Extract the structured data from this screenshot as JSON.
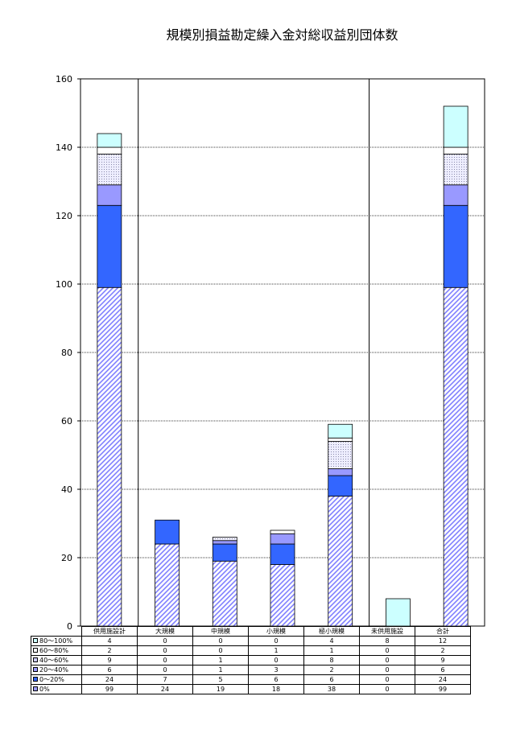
{
  "chart_data": {
    "type": "bar",
    "stacked": true,
    "title": "規模別損益勘定繰入金対総収益別団体数",
    "categories": [
      "供用施設計",
      "大規模",
      "中規模",
      "小規模",
      "極小規模",
      "未供用施設",
      "合計"
    ],
    "ylim": [
      0,
      160
    ],
    "yticks": [
      0,
      20,
      40,
      60,
      80,
      100,
      120,
      140,
      160
    ],
    "grid": true,
    "series": [
      {
        "name": "0%",
        "color": "#9999ff",
        "values": [
          99,
          24,
          19,
          18,
          38,
          0,
          99
        ]
      },
      {
        "name": "0～20%",
        "color": "#3366ff",
        "values": [
          24,
          7,
          5,
          6,
          6,
          0,
          24
        ]
      },
      {
        "name": "20～40%",
        "color": "#9999ff",
        "values": [
          6,
          0,
          1,
          3,
          2,
          0,
          6
        ]
      },
      {
        "name": "40～60%",
        "color": "#ccccff",
        "values": [
          9,
          0,
          1,
          0,
          8,
          0,
          9
        ]
      },
      {
        "name": "60～80%",
        "color": "#ffffff",
        "values": [
          2,
          0,
          0,
          1,
          1,
          0,
          2
        ]
      },
      {
        "name": "80～100%",
        "color": "#ccffff",
        "values": [
          4,
          0,
          0,
          0,
          4,
          8,
          12
        ]
      }
    ]
  }
}
